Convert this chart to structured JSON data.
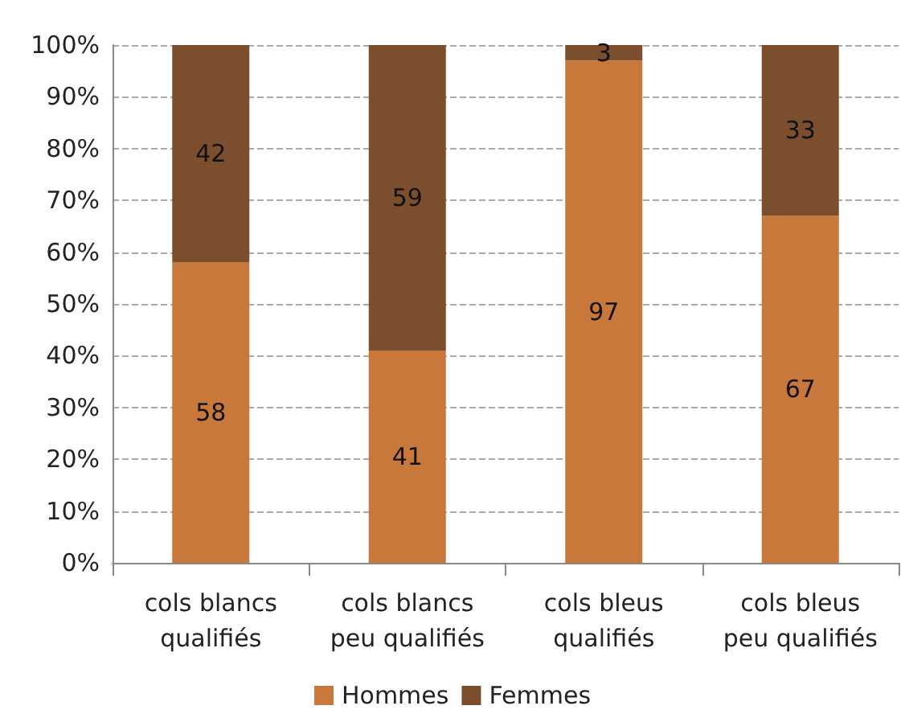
{
  "chart_data": {
    "type": "bar",
    "stacked": true,
    "categories": [
      "cols blancs\nqualifiés",
      "cols blancs\npeu qualifiés",
      "cols bleus\nqualifiés",
      "cols bleus\npeu qualifiés"
    ],
    "series": [
      {
        "name": "Hommes",
        "color": "#c8783a",
        "values": [
          58,
          41,
          97,
          67
        ]
      },
      {
        "name": "Femmes",
        "color": "#7b4f2e",
        "values": [
          42,
          59,
          3,
          33
        ]
      }
    ],
    "ylim": [
      0,
      100
    ],
    "yticks": [
      {
        "value": 0,
        "label": "0%"
      },
      {
        "value": 10,
        "label": "10%"
      },
      {
        "value": 20,
        "label": "20%"
      },
      {
        "value": 30,
        "label": "30%"
      },
      {
        "value": 40,
        "label": "40%"
      },
      {
        "value": 50,
        "label": "50%"
      },
      {
        "value": 60,
        "label": "60%"
      },
      {
        "value": 70,
        "label": "70%"
      },
      {
        "value": 80,
        "label": "80%"
      },
      {
        "value": 90,
        "label": "90%"
      },
      {
        "value": 100,
        "label": "100%"
      }
    ],
    "grid": "y",
    "legend": "bottom",
    "data_labels": true
  }
}
